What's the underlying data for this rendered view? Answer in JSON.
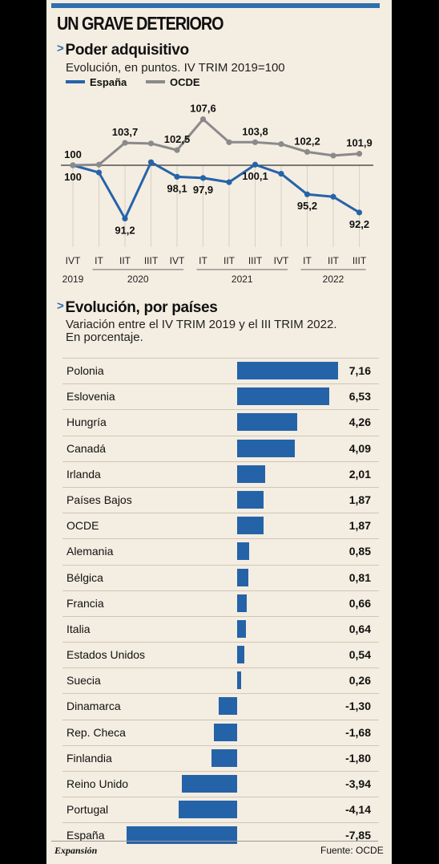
{
  "title": "UN GRAVE DETERIORO",
  "section1": {
    "title": "Poder adquisitivo",
    "subtitle": "Evolución, en puntos. IV TRIM 2019=100",
    "legend": [
      {
        "name": "España",
        "color": "#2563a9"
      },
      {
        "name": "OCDE",
        "color": "#8a8a8a"
      }
    ]
  },
  "section2": {
    "title": "Evolución, por países",
    "subtitle_line1": "Variación entre el IV TRIM 2019 y el III TRIM 2022.",
    "subtitle_line2": "En porcentaje."
  },
  "chart_data": [
    {
      "type": "line",
      "x": [
        "IVT",
        "IT",
        "IIT",
        "IIIT",
        "IVT",
        "IT",
        "IIT",
        "IIIT",
        "IVT",
        "IT",
        "IIT",
        "IIIT"
      ],
      "year_labels": [
        "2019",
        "2020",
        "2021",
        "2022"
      ],
      "baseline": 100,
      "ylim": [
        90,
        109
      ],
      "series": [
        {
          "name": "España",
          "color": "#2563a9",
          "values": [
            100,
            98.8,
            91.2,
            100.5,
            98.1,
            97.9,
            97.2,
            100.1,
            98.6,
            95.2,
            94.8,
            92.2
          ]
        },
        {
          "name": "OCDE",
          "color": "#8a8a8a",
          "values": [
            100,
            100.1,
            103.7,
            103.6,
            102.5,
            107.6,
            103.8,
            103.8,
            103.5,
            102.2,
            101.6,
            101.9
          ]
        }
      ],
      "data_labels": [
        {
          "series": "OCDE",
          "index": 0,
          "text": "100"
        },
        {
          "series": "España",
          "index": 0,
          "text": "100"
        },
        {
          "series": "OCDE",
          "index": 2,
          "text": "103,7"
        },
        {
          "series": "España",
          "index": 2,
          "text": "91,2"
        },
        {
          "series": "OCDE",
          "index": 4,
          "text": "102,5"
        },
        {
          "series": "España",
          "index": 4,
          "text": "98,1"
        },
        {
          "series": "OCDE",
          "index": 5,
          "text": "107,6"
        },
        {
          "series": "España",
          "index": 5,
          "text": "97,9"
        },
        {
          "series": "OCDE",
          "index": 7,
          "text": "103,8"
        },
        {
          "series": "España",
          "index": 7,
          "text": "100,1"
        },
        {
          "series": "OCDE",
          "index": 9,
          "text": "102,2"
        },
        {
          "series": "España",
          "index": 9,
          "text": "95,2"
        },
        {
          "series": "OCDE",
          "index": 11,
          "text": "101,9"
        },
        {
          "series": "España",
          "index": 11,
          "text": "92,2"
        }
      ]
    },
    {
      "type": "bar",
      "orientation": "horizontal",
      "categories": [
        "Polonia",
        "Eslovenia",
        "Hungría",
        "Canadá",
        "Irlanda",
        "Países Bajos",
        "OCDE",
        "Alemania",
        "Bélgica",
        "Francia",
        "Italia",
        "Estados Unidos",
        "Suecia",
        "Dinamarca",
        "Rep. Checa",
        "Finlandia",
        "Reino Unido",
        "Portugal",
        "España"
      ],
      "values": [
        7.16,
        6.53,
        4.26,
        4.09,
        2.01,
        1.87,
        1.87,
        0.85,
        0.81,
        0.66,
        0.64,
        0.54,
        0.26,
        -1.3,
        -1.68,
        -1.8,
        -3.94,
        -4.14,
        -7.85
      ],
      "value_labels": [
        "7,16",
        "6,53",
        "4,26",
        "4,09",
        "2,01",
        "1,87",
        "1,87",
        "0,85",
        "0,81",
        "0,66",
        "0,64",
        "0,54",
        "0,26",
        "-1,30",
        "-1,68",
        "-1,80",
        "-3,94",
        "-4,14",
        "-7,85"
      ],
      "color": "#2563a9"
    }
  ],
  "footer": {
    "brand": "Expansión",
    "source": "Fuente: OCDE"
  }
}
